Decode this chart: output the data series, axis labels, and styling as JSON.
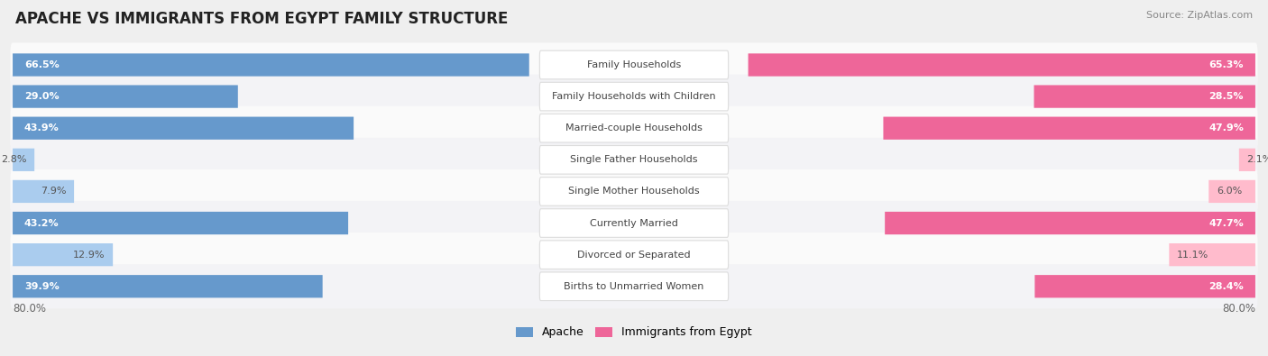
{
  "title": "APACHE VS IMMIGRANTS FROM EGYPT FAMILY STRUCTURE",
  "source": "Source: ZipAtlas.com",
  "categories": [
    "Family Households",
    "Family Households with Children",
    "Married-couple Households",
    "Single Father Households",
    "Single Mother Households",
    "Currently Married",
    "Divorced or Separated",
    "Births to Unmarried Women"
  ],
  "apache_values": [
    66.5,
    29.0,
    43.9,
    2.8,
    7.9,
    43.2,
    12.9,
    39.9
  ],
  "egypt_values": [
    65.3,
    28.5,
    47.9,
    2.1,
    6.0,
    47.7,
    11.1,
    28.4
  ],
  "max_value": 80.0,
  "apache_color_high": "#6699CC",
  "apache_color_low": "#AACCEE",
  "egypt_color_high": "#EE6699",
  "egypt_color_low": "#FFBBCC",
  "bg_color": "#EFEFEF",
  "row_bg_color": "#FAFAFA",
  "row_alt_bg_color": "#F3F3F6",
  "threshold_high": 25.0,
  "legend_apache": "Apache",
  "legend_egypt": "Immigrants from Egypt",
  "title_fontsize": 12,
  "source_fontsize": 8,
  "value_fontsize": 8,
  "label_fontsize": 8
}
